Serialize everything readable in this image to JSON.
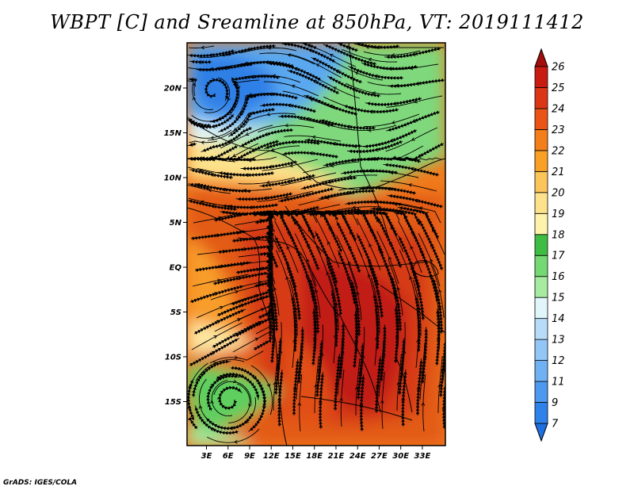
{
  "title": "WBPT [C] and Sreamline at 850hPa, VT: 2019111412",
  "credit": "GrADS: IGES/COLA",
  "map": {
    "lat_ticks": [
      {
        "label": "20N",
        "lat": 20
      },
      {
        "label": "15N",
        "lat": 15
      },
      {
        "label": "10N",
        "lat": 10
      },
      {
        "label": "5N",
        "lat": 5
      },
      {
        "label": "EQ",
        "lat": 0
      },
      {
        "label": "5S",
        "lat": -5
      },
      {
        "label": "10S",
        "lat": -10
      },
      {
        "label": "15S",
        "lat": -15
      }
    ],
    "lon_ticks": [
      {
        "label": "3E",
        "lon": 3
      },
      {
        "label": "6E",
        "lon": 6
      },
      {
        "label": "9E",
        "lon": 9
      },
      {
        "label": "12E",
        "lon": 12
      },
      {
        "label": "15E",
        "lon": 15
      },
      {
        "label": "18E",
        "lon": 18
      },
      {
        "label": "21E",
        "lon": 21
      },
      {
        "label": "24E",
        "lon": 24
      },
      {
        "label": "27E",
        "lon": 27
      },
      {
        "label": "30E",
        "lon": 30
      },
      {
        "label": "33E",
        "lon": 33
      }
    ]
  },
  "colorbar": {
    "labels": [
      "7",
      "9",
      "11",
      "12",
      "13",
      "14",
      "15",
      "16",
      "17",
      "18",
      "19",
      "20",
      "21",
      "22",
      "23",
      "24",
      "25",
      "26"
    ],
    "colors": [
      "#1e6fe0",
      "#2f82ea",
      "#4c99ef",
      "#6fb1f3",
      "#92c6f7",
      "#b7dcf8",
      "#e0f6fb",
      "#a6eba0",
      "#74d873",
      "#3fbd43",
      "#fff3ab",
      "#fde28b",
      "#fbc55a",
      "#f8a126",
      "#f37e1a",
      "#ea5517",
      "#dd3615",
      "#c81c12",
      "#a30d0c"
    ]
  }
}
